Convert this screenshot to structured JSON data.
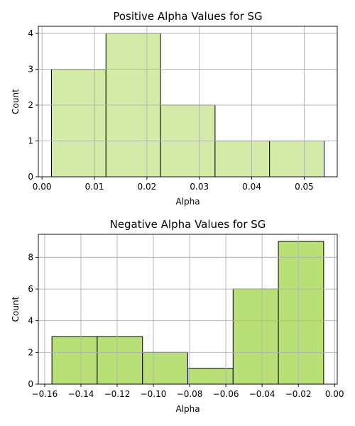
{
  "chart_data": [
    {
      "type": "histogram",
      "title": "Positive Alpha Values for SG",
      "xlabel": "Alpha",
      "ylabel": "Count",
      "bin_edges": [
        0.0018,
        0.0122,
        0.0226,
        0.033,
        0.0434,
        0.0538
      ],
      "counts": [
        3,
        4,
        2,
        1,
        1
      ],
      "xlim": [
        -0.0007,
        0.0563
      ],
      "ylim": [
        0,
        4.2
      ],
      "xticks": [
        0.0,
        0.01,
        0.02,
        0.03,
        0.04,
        0.05
      ],
      "xtick_labels": [
        "0.00",
        "0.01",
        "0.02",
        "0.03",
        "0.04",
        "0.05"
      ],
      "yticks": [
        0,
        1,
        2,
        3,
        4
      ],
      "ytick_labels": [
        "0",
        "1",
        "2",
        "3",
        "4"
      ],
      "grid": true,
      "bar_color": "#d4eba8"
    },
    {
      "type": "histogram",
      "title": "Negative Alpha Values for SG",
      "xlabel": "Alpha",
      "ylabel": "Count",
      "bin_edges": [
        -0.156,
        -0.131,
        -0.106,
        -0.081,
        -0.056,
        -0.031,
        -0.006
      ],
      "counts": [
        3,
        3,
        2,
        1,
        6,
        9
      ],
      "xlim": [
        -0.1635,
        0.0015
      ],
      "ylim": [
        0,
        9.45
      ],
      "xticks": [
        -0.16,
        -0.14,
        -0.12,
        -0.1,
        -0.08,
        -0.06,
        -0.04,
        -0.02,
        0.0
      ],
      "xtick_labels": [
        "−0.16",
        "−0.14",
        "−0.12",
        "−0.10",
        "−0.08",
        "−0.06",
        "−0.04",
        "−0.02",
        "0.00"
      ],
      "yticks": [
        0,
        2,
        4,
        6,
        8
      ],
      "ytick_labels": [
        "0",
        "2",
        "4",
        "6",
        "8"
      ],
      "grid": true,
      "bar_color": "#b8e077"
    }
  ]
}
